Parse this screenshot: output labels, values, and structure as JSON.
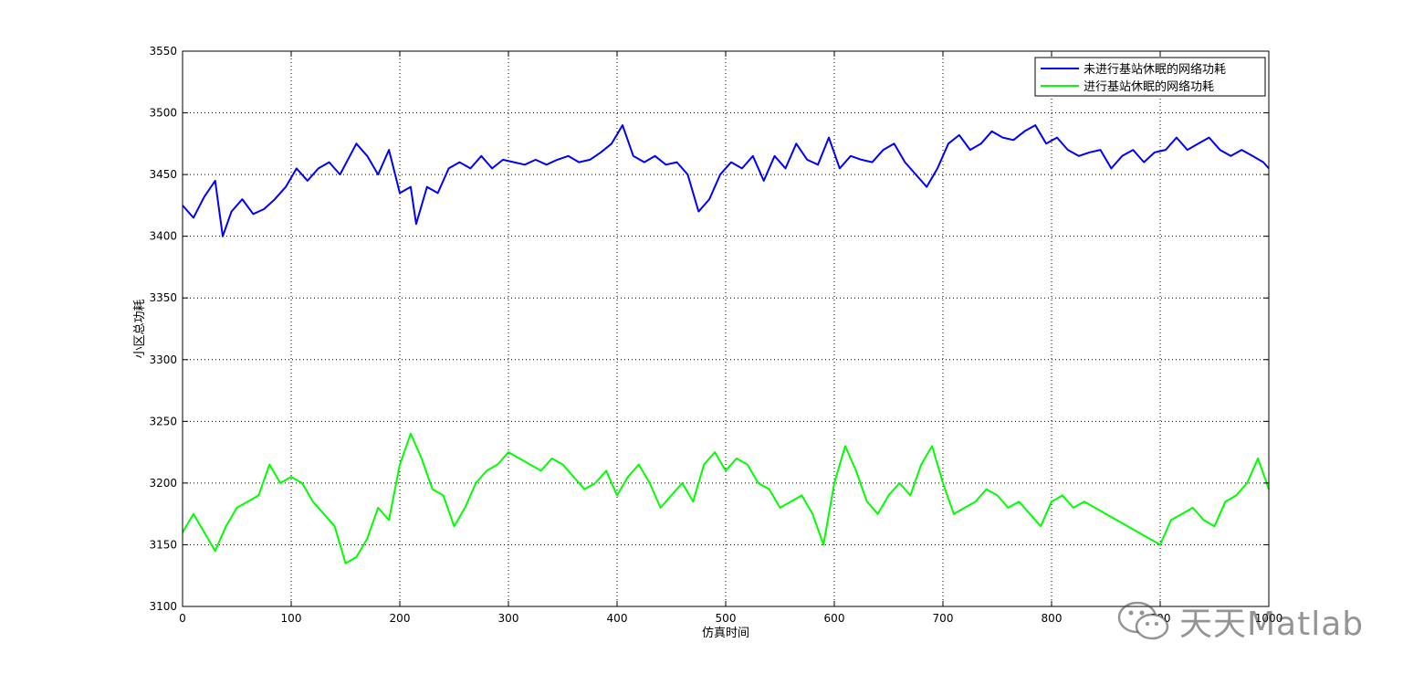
{
  "chart_data": {
    "type": "line",
    "title": "",
    "xlabel": "仿真时间",
    "ylabel": "小区总功耗",
    "xlim": [
      0,
      1000
    ],
    "ylim": [
      3100,
      3550
    ],
    "xticks": [
      0,
      100,
      200,
      300,
      400,
      500,
      600,
      700,
      800,
      900,
      1000
    ],
    "xtick_labels": [
      "0",
      "100",
      "200",
      "300",
      "400",
      "500",
      "600",
      "700",
      "800",
      "900",
      "1000"
    ],
    "yticks": [
      3100,
      3150,
      3200,
      3250,
      3300,
      3350,
      3400,
      3450,
      3500,
      3550
    ],
    "ytick_labels": [
      "3100",
      "3150",
      "3200",
      "3250",
      "3300",
      "3350",
      "3400",
      "3450",
      "3500",
      "3550"
    ],
    "grid": true,
    "legend_position": "top-right",
    "series": [
      {
        "name": "未进行基站休眠的网络功耗",
        "color": "#0000ff",
        "x": [
          0,
          10,
          20,
          30,
          37,
          45,
          55,
          65,
          75,
          85,
          95,
          105,
          115,
          125,
          135,
          145,
          160,
          170,
          180,
          190,
          200,
          210,
          215,
          225,
          235,
          245,
          255,
          265,
          275,
          285,
          295,
          305,
          315,
          325,
          335,
          345,
          355,
          365,
          375,
          385,
          395,
          405,
          415,
          425,
          435,
          445,
          455,
          465,
          475,
          485,
          495,
          505,
          515,
          525,
          535,
          545,
          555,
          565,
          575,
          585,
          595,
          605,
          615,
          625,
          635,
          645,
          655,
          665,
          675,
          685,
          695,
          705,
          715,
          725,
          735,
          745,
          755,
          765,
          775,
          785,
          795,
          805,
          815,
          825,
          835,
          845,
          855,
          865,
          875,
          885,
          895,
          905,
          915,
          925,
          935,
          945,
          955,
          965,
          975,
          985,
          995,
          1000
        ],
        "y": [
          3425,
          3415,
          3432,
          3445,
          3400,
          3420,
          3430,
          3418,
          3422,
          3430,
          3440,
          3455,
          3445,
          3455,
          3460,
          3450,
          3475,
          3465,
          3450,
          3470,
          3435,
          3440,
          3410,
          3440,
          3435,
          3455,
          3460,
          3455,
          3465,
          3455,
          3462,
          3460,
          3458,
          3462,
          3458,
          3462,
          3465,
          3460,
          3462,
          3468,
          3475,
          3490,
          3465,
          3460,
          3465,
          3458,
          3460,
          3450,
          3420,
          3430,
          3450,
          3460,
          3455,
          3465,
          3445,
          3465,
          3455,
          3475,
          3462,
          3458,
          3480,
          3455,
          3465,
          3462,
          3460,
          3470,
          3475,
          3460,
          3450,
          3440,
          3455,
          3475,
          3482,
          3470,
          3475,
          3485,
          3480,
          3478,
          3485,
          3490,
          3475,
          3480,
          3470,
          3465,
          3468,
          3470,
          3455,
          3465,
          3470,
          3460,
          3468,
          3470,
          3480,
          3470,
          3475,
          3480,
          3470,
          3465,
          3470,
          3465,
          3460,
          3455
        ]
      },
      {
        "name": "进行基站休眠的网络功耗",
        "color": "#00ff00",
        "x": [
          0,
          10,
          20,
          30,
          40,
          50,
          60,
          70,
          80,
          90,
          100,
          110,
          120,
          130,
          140,
          150,
          160,
          170,
          180,
          190,
          200,
          210,
          220,
          230,
          240,
          250,
          260,
          270,
          280,
          290,
          300,
          310,
          320,
          330,
          340,
          350,
          360,
          370,
          380,
          390,
          400,
          410,
          420,
          430,
          440,
          450,
          460,
          470,
          480,
          490,
          500,
          510,
          520,
          530,
          540,
          550,
          560,
          570,
          580,
          590,
          600,
          610,
          620,
          630,
          640,
          650,
          660,
          670,
          680,
          690,
          700,
          710,
          720,
          730,
          740,
          750,
          760,
          770,
          780,
          790,
          800,
          810,
          820,
          830,
          840,
          850,
          860,
          870,
          880,
          890,
          900,
          910,
          920,
          930,
          940,
          950,
          960,
          970,
          980,
          990,
          1000
        ],
        "y": [
          3160,
          3175,
          3160,
          3145,
          3165,
          3180,
          3185,
          3190,
          3215,
          3200,
          3205,
          3200,
          3185,
          3175,
          3165,
          3135,
          3140,
          3155,
          3180,
          3170,
          3215,
          3240,
          3220,
          3195,
          3190,
          3165,
          3180,
          3200,
          3210,
          3215,
          3225,
          3220,
          3215,
          3210,
          3220,
          3215,
          3205,
          3195,
          3200,
          3210,
          3190,
          3205,
          3215,
          3200,
          3180,
          3190,
          3200,
          3185,
          3215,
          3225,
          3210,
          3220,
          3215,
          3200,
          3195,
          3180,
          3185,
          3190,
          3175,
          3150,
          3200,
          3230,
          3210,
          3185,
          3175,
          3190,
          3200,
          3190,
          3215,
          3230,
          3200,
          3175,
          3180,
          3185,
          3195,
          3190,
          3180,
          3185,
          3175,
          3165,
          3185,
          3190,
          3180,
          3185,
          3180,
          3175,
          3170,
          3165,
          3160,
          3155,
          3150,
          3170,
          3175,
          3180,
          3170,
          3165,
          3185,
          3190,
          3200,
          3220,
          3195
        ]
      }
    ]
  },
  "watermark": {
    "text": "天天Matlab",
    "icon": "wechat-icon"
  }
}
